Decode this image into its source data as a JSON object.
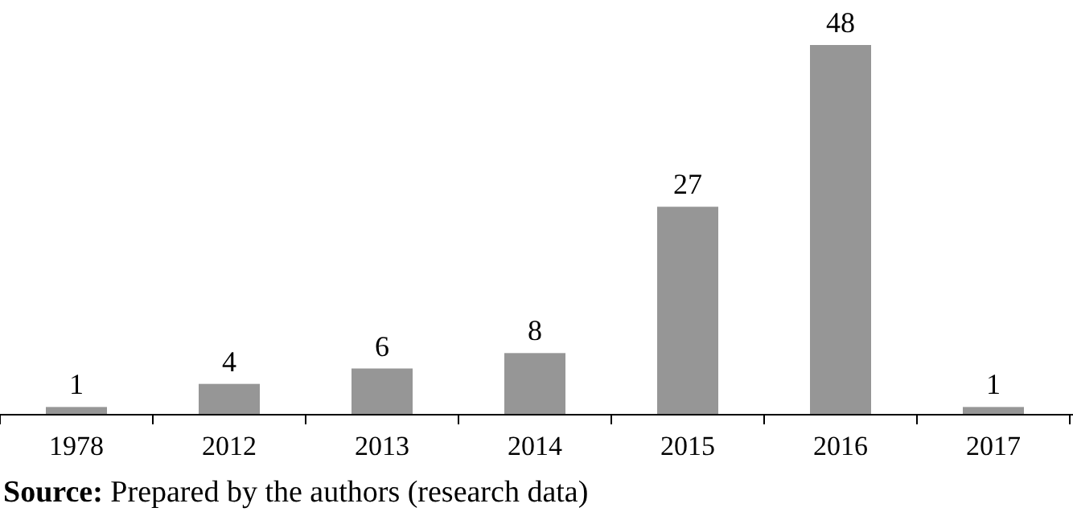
{
  "chart_data": {
    "type": "bar",
    "categories": [
      "1978",
      "2012",
      "2013",
      "2014",
      "2015",
      "2016",
      "2017"
    ],
    "values": [
      1,
      4,
      6,
      8,
      27,
      48,
      1
    ],
    "color": "#969696",
    "data_labels": true,
    "annotations": [
      "Source: Prepared by the authors (research data)"
    ]
  }
}
